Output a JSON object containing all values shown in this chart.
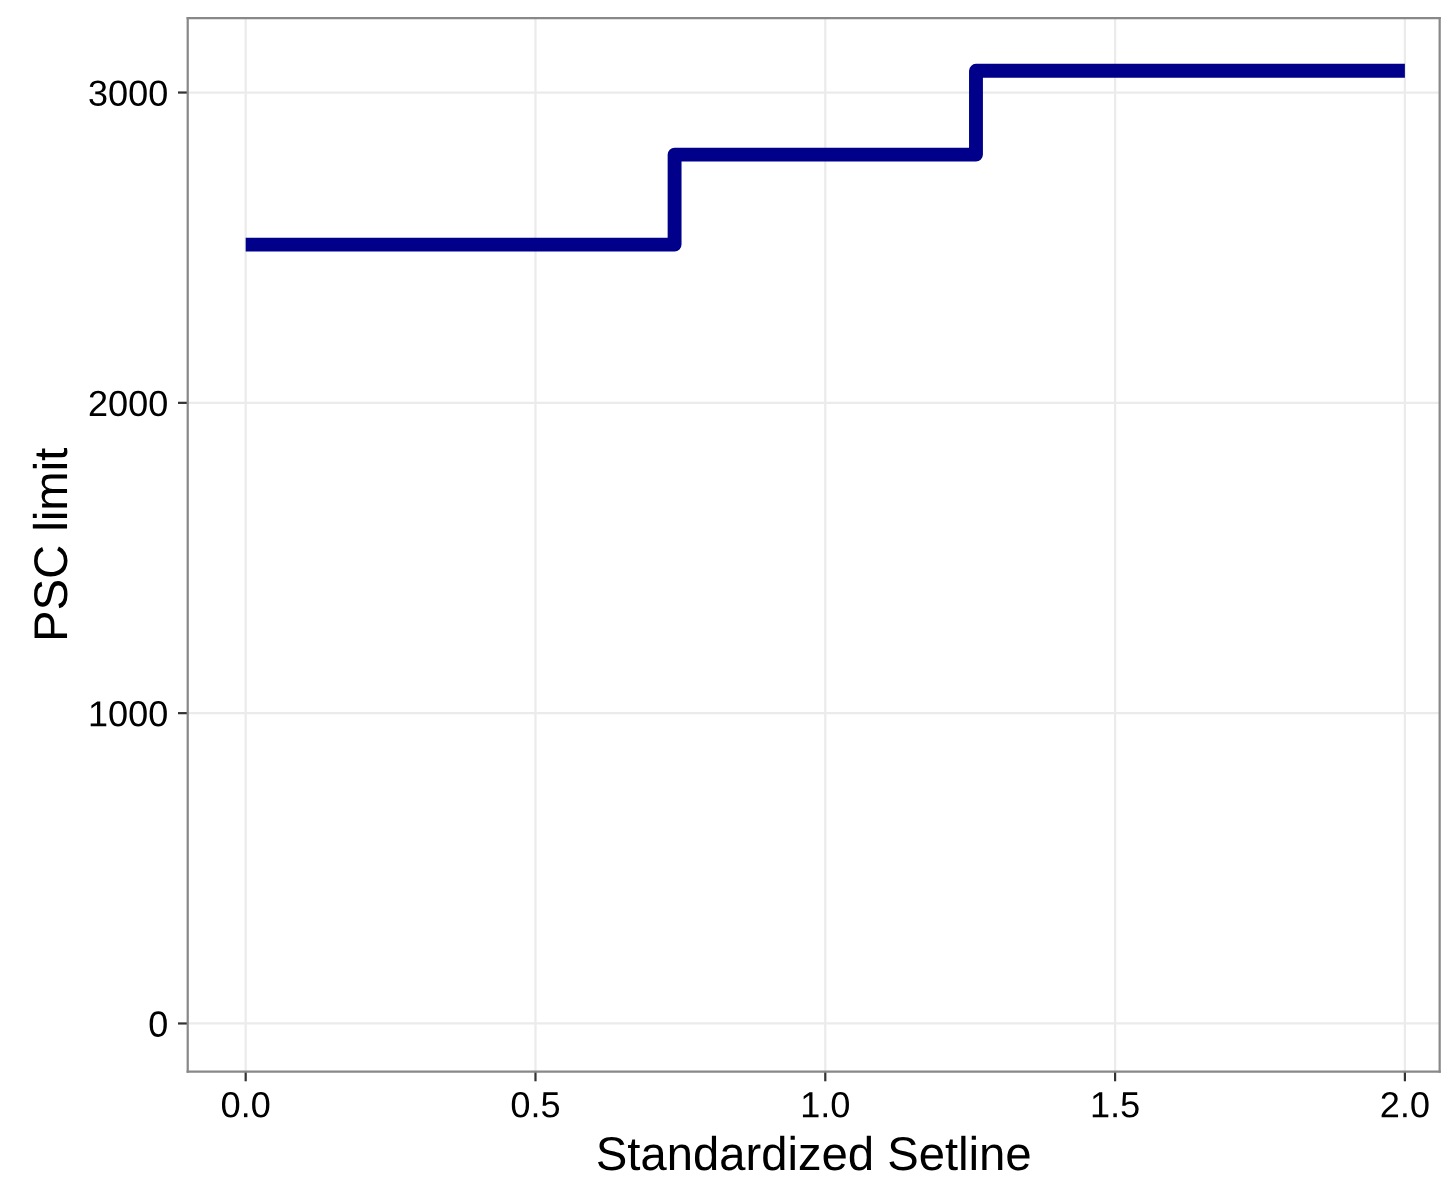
{
  "chart_data": {
    "type": "step",
    "xlabel": "Standardized Setline",
    "ylabel": "PSC limit",
    "x": [
      0.0,
      0.74,
      1.26,
      2.0
    ],
    "series": [
      {
        "color": "#00008b",
        "values": [
          2510,
          2800,
          3070,
          3070
        ]
      }
    ],
    "xlim": [
      -0.1,
      2.06
    ],
    "ylim": [
      -155,
      3240
    ],
    "xticks": [
      {
        "value": 0,
        "label": "0.0"
      },
      0.5,
      {
        "value": 1,
        "label": "1.0"
      },
      1.5,
      {
        "value": 2,
        "label": "2.0"
      }
    ],
    "yticks": [
      0,
      1000,
      2000,
      3000
    ],
    "grid": true
  }
}
